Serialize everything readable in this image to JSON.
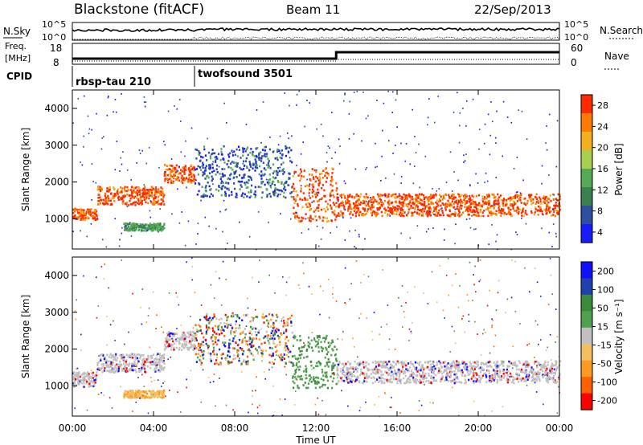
{
  "header": {
    "title": "Blackstone (fitACF)",
    "beam": "Beam 11",
    "date": "22/Sep/2013"
  },
  "panels": {
    "nsky": {
      "left_label": "N.Sky",
      "right_label": "N.Search",
      "ticks_left": [
        "10^5",
        "10^0"
      ],
      "ticks_right": [
        "10^5",
        "10^0"
      ]
    },
    "freq": {
      "left_label": "Freq.",
      "unit_label": "[MHz]",
      "right_label": "Nave",
      "ticks_left": [
        "18",
        "8"
      ],
      "ticks_right": [
        "60",
        "0"
      ]
    },
    "cpid": {
      "label": "CPID",
      "segments": [
        {
          "name": "rbsp-tau 210",
          "start_hour": 0
        },
        {
          "name": "twofsound 3501",
          "start_hour": 6
        }
      ]
    }
  },
  "axes": {
    "xlabel": "Time UT",
    "xticks": [
      "00:00",
      "04:00",
      "08:00",
      "12:00",
      "16:00",
      "20:00",
      "00:00"
    ],
    "ylabel": "Slant Range [km]",
    "yticks": [
      "4000",
      "3000",
      "2000",
      "1000"
    ]
  },
  "colorbars": {
    "power": {
      "label": "Power [dB]",
      "ticks": [
        "28",
        "24",
        "20",
        "16",
        "12",
        "8",
        "4"
      ]
    },
    "velocity": {
      "label": "Velocity [m s⁻¹]",
      "ticks": [
        "200",
        "100",
        "50",
        "15",
        "-15",
        "-50",
        "-100",
        "-200"
      ]
    }
  },
  "chart_data": [
    {
      "type": "heatmap",
      "title": "Power",
      "xlabel": "Time UT",
      "ylabel": "Slant Range [km]",
      "x_range_hours": [
        0,
        24
      ],
      "y_range_km": [
        180,
        4500
      ],
      "colorbar": {
        "label": "Power [dB]",
        "range": [
          0,
          30
        ],
        "colors": [
          "#1a1aff",
          "#2c4fa0",
          "#3a8050",
          "#55aa55",
          "#a8d050",
          "#f0b020",
          "#ff7a00",
          "#ff2a00"
        ]
      },
      "bands": [
        {
          "t0": 0.0,
          "t1": 1.2,
          "r0": 1000,
          "r1": 1300,
          "level": "high"
        },
        {
          "t0": 1.2,
          "t1": 4.5,
          "r0": 1400,
          "r1": 1900,
          "level": "high"
        },
        {
          "t0": 4.5,
          "t1": 6.0,
          "r0": 2000,
          "r1": 2500,
          "level": "high"
        },
        {
          "t0": 6.0,
          "t1": 10.8,
          "r0": 1600,
          "r1": 3000,
          "level": "low"
        },
        {
          "t0": 10.8,
          "t1": 13.0,
          "r0": 950,
          "r1": 2400,
          "level": "high"
        },
        {
          "t0": 13.0,
          "t1": 24.0,
          "r0": 1100,
          "r1": 1700,
          "level": "high"
        },
        {
          "t0": 2.5,
          "t1": 4.5,
          "r0": 700,
          "r1": 900,
          "level": "mid"
        }
      ]
    },
    {
      "type": "heatmap",
      "title": "Velocity",
      "xlabel": "Time UT",
      "ylabel": "Slant Range [km]",
      "x_range_hours": [
        0,
        24
      ],
      "y_range_km": [
        180,
        4500
      ],
      "colorbar": {
        "label": "Velocity [m s⁻¹]",
        "range": [
          -200,
          200
        ],
        "colors": [
          "#ff0000",
          "#ff6000",
          "#ff9a20",
          "#f2c060",
          "#c0c0c0",
          "#50a050",
          "#3a8a3a",
          "#2040b0",
          "#1010ff"
        ]
      },
      "bands": [
        {
          "t0": 0.0,
          "t1": 1.2,
          "r0": 1000,
          "r1": 1400,
          "level": "zero"
        },
        {
          "t0": 1.2,
          "t1": 4.5,
          "r0": 1400,
          "r1": 1900,
          "level": "zero"
        },
        {
          "t0": 4.5,
          "t1": 6.0,
          "r0": 2000,
          "r1": 2500,
          "level": "zero"
        },
        {
          "t0": 6.0,
          "t1": 10.8,
          "r0": 1600,
          "r1": 3000,
          "level": "mixed"
        },
        {
          "t0": 10.8,
          "t1": 13.0,
          "r0": 950,
          "r1": 2400,
          "level": "positive"
        },
        {
          "t0": 13.0,
          "t1": 24.0,
          "r0": 1100,
          "r1": 1700,
          "level": "zero"
        },
        {
          "t0": 2.5,
          "t1": 4.5,
          "r0": 700,
          "r1": 900,
          "level": "negative"
        }
      ]
    }
  ]
}
